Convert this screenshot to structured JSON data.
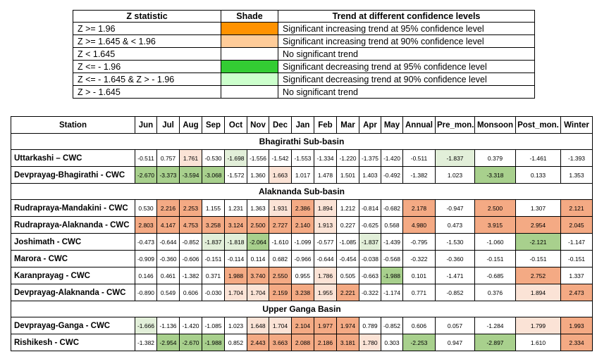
{
  "colors": {
    "sig_inc_95": "#f4aa84",
    "sig_inc_90": "#fbe3d6",
    "sig_dec_95": "#a8d08d",
    "sig_dec_90": "#e2efd9",
    "none": "#ffffff",
    "legend_inc_95": "#ff9200",
    "legend_inc_90": "#ffcc99",
    "legend_dec_95": "#33cc33",
    "legend_dec_90": "#ccffcc"
  },
  "legend": {
    "headers": [
      "Z statistic",
      "Shade",
      "Trend at different confidence levels"
    ],
    "rows": [
      {
        "z": "Z >= 1.96",
        "shade": "legend_inc_95",
        "trend": "Significant increasing trend at 95% confidence level"
      },
      {
        "z": "Z >= 1.645 & < 1.96",
        "shade": "legend_inc_90",
        "trend": "Significant increasing trend at 90% confidence level"
      },
      {
        "z": "Z < 1.645",
        "shade": "none",
        "trend": "No significant trend"
      },
      {
        "z": "Z <= - 1.96",
        "shade": "legend_dec_95",
        "trend": "Significant decreasing trend at 95% confidence level"
      },
      {
        "z": "Z <= - 1.645 & Z > - 1.96",
        "shade": "legend_dec_90",
        "trend": "Significant decreasing trend at 90% confidence level"
      },
      {
        "z": "Z > - 1.645",
        "shade": "none",
        "trend": "No significant trend"
      }
    ]
  },
  "table": {
    "headers": [
      "Station",
      "Jun",
      "Jul",
      "Aug",
      "Sep",
      "Oct",
      "Nov",
      "Dec",
      "Jan",
      "Feb",
      "Mar",
      "Apr",
      "May",
      "Annual",
      "Pre_mon.",
      "Monsoon",
      "Post_mon.",
      "Winter"
    ],
    "groups": [
      {
        "name": "Bhagirathi Sub-basin",
        "rows": [
          {
            "station": "Uttarkashi – CWC",
            "values": [
              "-0.511",
              "0.757",
              "1.761",
              "-0.530",
              "-1.698",
              "-1.556",
              "-1.542",
              "-1.553",
              "-1.334",
              "-1.220",
              "-1.375",
              "-1.420",
              "-0.511",
              "-1.837",
              "0.379",
              "-1.461",
              "-1.393"
            ]
          },
          {
            "station": "Devprayag-Bhagirathi - CWC",
            "values": [
              "-2.670",
              "-3.373",
              "-3.594",
              "-3.068",
              "-1.572",
              "1.360",
              "1.663",
              "1.017",
              "1.478",
              "1.501",
              "1.403",
              "-0.492",
              "-1.382",
              "1.023",
              "-3.318",
              "0.133",
              "1.353"
            ]
          }
        ]
      },
      {
        "name": "Alaknanda Sub-basin",
        "rows": [
          {
            "station": "Rudraprayа-Mandakini - CWC",
            "values": [
              "0.530",
              "2.216",
              "2.253",
              "1.155",
              "1.231",
              "1.363",
              "1.931",
              "2.386",
              "1.894",
              "1.212",
              "-0.814",
              "-0.682",
              "2.178",
              "-0.947",
              "2.500",
              "1.307",
              "2.121"
            ]
          },
          {
            "station": "Rudrapraya-Alaknanda - CWC",
            "values": [
              "2.803",
              "4.147",
              "4.753",
              "3.258",
              "3.124",
              "2.500",
              "2.727",
              "2.140",
              "1.913",
              "0.227",
              "-0.625",
              "0.568",
              "4.980",
              "0.473",
              "3.915",
              "2.954",
              "2.045"
            ]
          },
          {
            "station": "Joshimath - CWC",
            "values": [
              "-0.473",
              "-0.644",
              "-0.852",
              "-1.837",
              "-1.818",
              "-2.064",
              "-1.610",
              "-1.099",
              "-0.577",
              "-1.085",
              "-1.837",
              "-1.439",
              "-0.795",
              "-1.530",
              "-1.060",
              "-2.121",
              "-1.147"
            ]
          },
          {
            "station": "Marora - CWC",
            "values": [
              "-0.909",
              "-0.360",
              "-0.606",
              "-0.151",
              "-0.114",
              "0.114",
              "0.682",
              "-0.966",
              "-0.644",
              "-0.454",
              "-0.038",
              "-0.568",
              "-0.322",
              "-0.360",
              "-0.151",
              "-0.151",
              "-0.151"
            ]
          },
          {
            "station": "Karanprayag - CWC",
            "values": [
              "0.146",
              "0.461",
              "-1.382",
              "0.371",
              "1.988",
              "3.740",
              "2.550",
              "0.955",
              "1.786",
              "0.505",
              "-0.663",
              "-1.988",
              "0.101",
              "-1.471",
              "-0.685",
              "2.752",
              "1.337"
            ]
          },
          {
            "station": "Devprayag-Alaknanda - CWC",
            "values": [
              "-0.890",
              "0.549",
              "0.606",
              "-0.030",
              "1.704",
              "1.704",
              "2.159",
              "3.238",
              "1.955",
              "2.221",
              "-0.322",
              "-1.174",
              "0.771",
              "-0.852",
              "0.376",
              "1.894",
              "2.473"
            ]
          }
        ]
      },
      {
        "name": "Upper Ganga Basin",
        "rows": [
          {
            "station": "Devprayag-Ganga - CWC",
            "values": [
              "-1.666",
              "-1.136",
              "-1.420",
              "-1.085",
              "1.023",
              "1.648",
              "1.704",
              "2.104",
              "1.977",
              "1.974",
              "0.789",
              "-0.852",
              "0.606",
              "0.057",
              "-1.284",
              "1.799",
              "1.993"
            ]
          },
          {
            "station": "Rishikesh - CWC",
            "values": [
              "-1.382",
              "-2.954",
              "-2.670",
              "-1.988",
              "0.852",
              "2.443",
              "3.663",
              "2.088",
              "2.186",
              "3.181",
              "1.780",
              "0.303",
              "-2.253",
              "0.947",
              "-2.897",
              "1.610",
              "2.334"
            ]
          }
        ]
      }
    ]
  }
}
